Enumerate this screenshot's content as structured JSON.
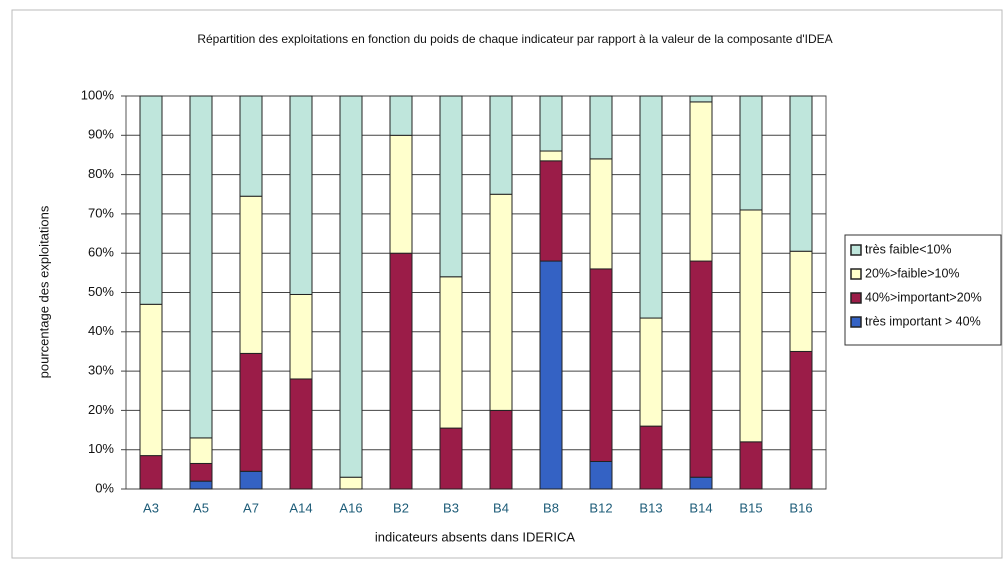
{
  "chart_data": {
    "type": "stacked_bar",
    "title": "Répartition des exploitations en fonction du poids de chaque indicateur par rapport à la valeur de la composante d'IDEA",
    "x_label": "indicateurs absents dans IDERICA",
    "y_label": "pourcentage des exploitations",
    "categories": [
      "A3",
      "A5",
      "A7",
      "A14",
      "A16",
      "B2",
      "B3",
      "B4",
      "B8",
      "B12",
      "B13",
      "B14",
      "B15",
      "B16"
    ],
    "series": [
      {
        "name": "très important > 40%",
        "color": "#3462c4",
        "values": [
          0,
          2,
          4.5,
          0,
          0,
          0,
          0,
          0,
          58,
          7,
          0,
          3,
          0,
          0
        ]
      },
      {
        "name": "40%>important>20%",
        "color": "#9b1c48",
        "values": [
          8.5,
          4.5,
          30,
          28,
          0,
          60,
          15.5,
          20,
          25.5,
          49,
          16,
          55,
          12,
          35
        ]
      },
      {
        "name": "20%>faible>10%",
        "color": "#ffffcc",
        "values": [
          38.5,
          6.5,
          40,
          21.5,
          3,
          30,
          38.5,
          55,
          2.5,
          28,
          27.5,
          40.5,
          59,
          25.5
        ]
      },
      {
        "name": "très faible<10%",
        "color": "#bfe6dc",
        "values": [
          53,
          87,
          25.5,
          50.5,
          97,
          10,
          46,
          25,
          14,
          16,
          56.5,
          1.5,
          29,
          39.5
        ]
      }
    ],
    "ylim": [
      0,
      100
    ],
    "yticks": [
      {
        "value": 0,
        "label": "0%"
      },
      {
        "value": 10,
        "label": "10%"
      },
      {
        "value": 20,
        "label": "20%"
      },
      {
        "value": 30,
        "label": "30%"
      },
      {
        "value": 40,
        "label": "40%"
      },
      {
        "value": 50,
        "label": "50%"
      },
      {
        "value": 60,
        "label": "60%"
      },
      {
        "value": 70,
        "label": "70%"
      },
      {
        "value": 80,
        "label": "80%"
      },
      {
        "value": 90,
        "label": "90%"
      },
      {
        "value": 100,
        "label": "100%"
      }
    ],
    "grid": true,
    "legend": "right"
  }
}
